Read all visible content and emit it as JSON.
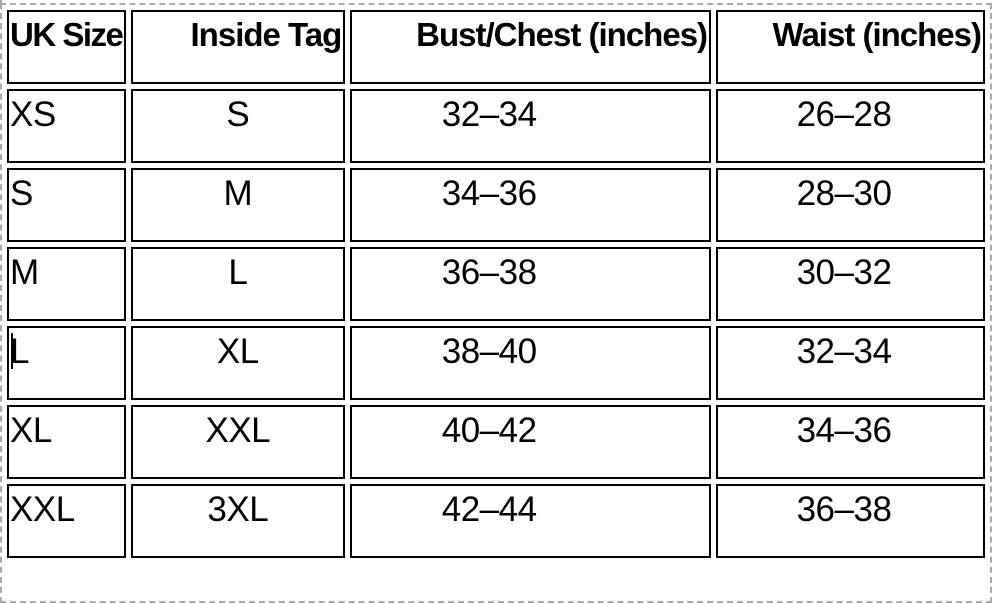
{
  "table": {
    "columns": [
      "UK Size",
      "Inside Tag",
      "Bust/Chest (inches)",
      "Waist (inches)"
    ],
    "rows": [
      [
        "XS",
        "S",
        "32–34",
        "26–28"
      ],
      [
        "S",
        "M",
        "34–36",
        "28–30"
      ],
      [
        "M",
        "L",
        "36–38",
        "30–32"
      ],
      [
        "L",
        "XL",
        "38–40",
        "32–34"
      ],
      [
        "XL",
        "XXL",
        "40–42",
        "34–36"
      ],
      [
        "XXL",
        "3XL",
        "42–44",
        "36–38"
      ]
    ]
  },
  "editor": {
    "caret": {
      "row_label": "L",
      "column": "UK Size",
      "visible": true
    }
  },
  "colors": {
    "cell_border": "#000000",
    "frame_dashed": "#a9a9a9",
    "background": "#ffffff",
    "text": "#000000"
  }
}
